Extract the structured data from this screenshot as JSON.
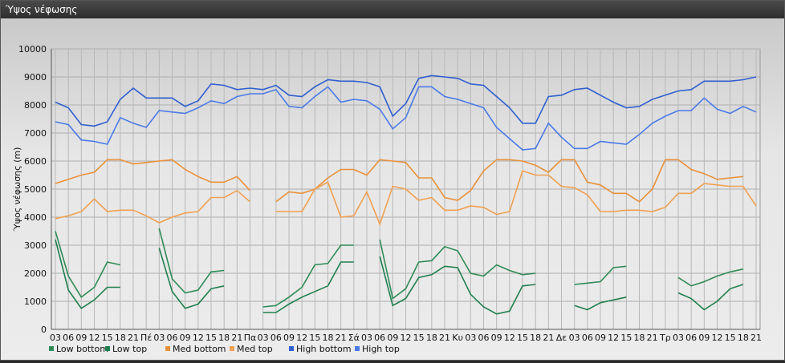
{
  "window": {
    "title": "Ύψος νέφωσης"
  },
  "chart_data": {
    "type": "line",
    "ylabel": "Ύψος νέφωσης (m)",
    "ylim": [
      0,
      10000
    ],
    "yticks": [
      0,
      1000,
      2000,
      3000,
      4000,
      5000,
      6000,
      7000,
      8000,
      9000,
      10000
    ],
    "categories": [
      "03",
      "06",
      "09",
      "12",
      "15",
      "18",
      "21",
      "Πέ",
      "03",
      "06",
      "09",
      "12",
      "15",
      "18",
      "21",
      "Πα",
      "03",
      "06",
      "09",
      "12",
      "15",
      "18",
      "21",
      "Σά",
      "03",
      "06",
      "09",
      "12",
      "15",
      "18",
      "21",
      "Κυ",
      "03",
      "06",
      "09",
      "12",
      "15",
      "18",
      "21",
      "Δε",
      "03",
      "06",
      "09",
      "12",
      "15",
      "18",
      "21",
      "Τρ",
      "03",
      "06",
      "09",
      "12",
      "15",
      "18",
      "21"
    ],
    "grid": true,
    "legend_position": "bottom-left",
    "series": [
      {
        "name": "Low bottom",
        "color": "#2e8b57",
        "values": [
          3500,
          1900,
          1150,
          1500,
          2400,
          2300,
          null,
          null,
          3600,
          1800,
          1300,
          1400,
          2050,
          2100,
          null,
          null,
          800,
          850,
          1150,
          1500,
          2300,
          2350,
          3000,
          3000,
          null,
          3200,
          1100,
          1450,
          2400,
          2450,
          2950,
          2800,
          2000,
          1900,
          2300,
          2100,
          1950,
          2000,
          null,
          null,
          1600,
          1650,
          1700,
          2200,
          2250,
          null,
          null,
          null,
          1850,
          1550,
          1700,
          1900,
          2050,
          2150,
          null
        ]
      },
      {
        "name": "Low top",
        "color": "#1f7f4f",
        "values": [
          3200,
          1400,
          750,
          1050,
          1500,
          1500,
          null,
          null,
          2900,
          1350,
          750,
          900,
          1450,
          1550,
          null,
          null,
          600,
          600,
          900,
          1150,
          1350,
          1550,
          2400,
          2400,
          null,
          2600,
          850,
          1100,
          1850,
          1950,
          2250,
          2200,
          1250,
          800,
          550,
          650,
          1550,
          1600,
          null,
          null,
          850,
          700,
          950,
          1050,
          1150,
          null,
          null,
          null,
          1300,
          1100,
          700,
          1000,
          1450,
          1600,
          null
        ]
      },
      {
        "name": "Med bottom",
        "color": "#e8913a",
        "values": [
          5200,
          5350,
          5500,
          5600,
          6050,
          6050,
          5900,
          5950,
          6000,
          6050,
          5700,
          5450,
          5250,
          5250,
          5450,
          4950,
          null,
          4550,
          4900,
          4850,
          5000,
          5400,
          5700,
          5700,
          5500,
          6050,
          6000,
          5950,
          5400,
          5400,
          4700,
          4600,
          4950,
          5650,
          6050,
          6050,
          6000,
          5850,
          5600,
          6050,
          6050,
          5250,
          5150,
          4850,
          4850,
          4550,
          5000,
          6050,
          6050,
          5700,
          5550,
          5350,
          5400,
          5450,
          null
        ]
      },
      {
        "name": "Med top",
        "color": "#f0a050",
        "values": [
          3950,
          4050,
          4200,
          4650,
          4200,
          4250,
          4250,
          4050,
          3800,
          4000,
          4150,
          4200,
          4700,
          4700,
          4950,
          4550,
          null,
          4200,
          4200,
          4200,
          5000,
          5250,
          4000,
          4050,
          4900,
          3750,
          5100,
          5000,
          4600,
          4700,
          4250,
          4250,
          4400,
          4350,
          4100,
          4200,
          5650,
          5500,
          5500,
          5100,
          5050,
          4800,
          4200,
          4200,
          4250,
          4250,
          4200,
          4350,
          4850,
          4850,
          5200,
          5150,
          5100,
          5100,
          4400
        ]
      },
      {
        "name": "High bottom",
        "color": "#2f5fd0",
        "values": [
          8100,
          7900,
          7300,
          7250,
          7400,
          8200,
          8600,
          8250,
          8250,
          8250,
          7950,
          8150,
          8750,
          8700,
          8550,
          8600,
          8550,
          8700,
          8350,
          8300,
          8650,
          8900,
          8850,
          8850,
          8800,
          8650,
          7600,
          8050,
          8950,
          9050,
          9000,
          8950,
          8750,
          8700,
          8300,
          7900,
          7350,
          7350,
          8300,
          8350,
          8550,
          8600,
          8350,
          8100,
          7900,
          7950,
          8200,
          8350,
          8500,
          8550,
          8850,
          8850,
          8850,
          8900,
          9000
        ]
      },
      {
        "name": "High top",
        "color": "#4a7ae8",
        "values": [
          7400,
          7300,
          6750,
          6700,
          6600,
          7550,
          7350,
          7200,
          7800,
          7750,
          7700,
          7900,
          8150,
          8050,
          8300,
          8400,
          8400,
          8550,
          7950,
          7900,
          8300,
          8650,
          8100,
          8200,
          8150,
          7850,
          7150,
          7550,
          8650,
          8650,
          8300,
          8200,
          8050,
          7900,
          7200,
          6800,
          6400,
          6450,
          7350,
          6850,
          6450,
          6450,
          6700,
          6650,
          6600,
          6950,
          7350,
          7600,
          7800,
          7800,
          8250,
          7850,
          7700,
          7950,
          7750
        ]
      }
    ]
  }
}
